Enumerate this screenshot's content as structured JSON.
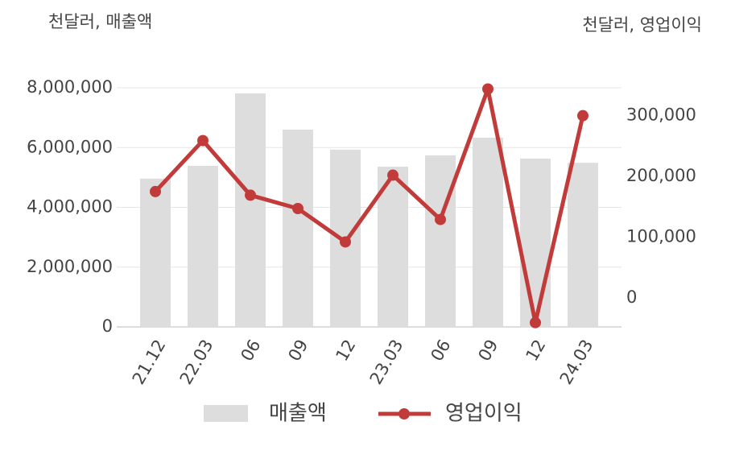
{
  "chart_data": {
    "type": "bar",
    "y_label": "천달러, 매출액",
    "y2_label": "천달러, 영업이익",
    "categories": [
      "21.12",
      "22.03",
      "06",
      "09",
      "12",
      "23.03",
      "06",
      "09",
      "12",
      "24.03"
    ],
    "series": [
      {
        "name": "매출액",
        "type": "bar",
        "color": "#dddddd",
        "values": [
          4960000,
          5390000,
          7810000,
          6600000,
          5930000,
          5360000,
          5740000,
          6330000,
          5630000,
          5490000
        ]
      },
      {
        "name": "영업이익",
        "type": "line",
        "color": "#c23b3b",
        "axis": "y2",
        "values": [
          175000,
          259000,
          169000,
          147000,
          92000,
          202000,
          129000,
          344000,
          -41000,
          300000
        ]
      }
    ],
    "ylim": [
      0,
      8000000
    ],
    "yticks": [
      0,
      {
        "value": 2000000,
        "label": "2,000,000"
      },
      {
        "value": 4000000,
        "label": "4,000,000"
      },
      {
        "value": 6000000,
        "label": "6,000,000"
      },
      {
        "value": 8000000,
        "label": "8,000,000"
      }
    ],
    "y2lim": [
      -48000,
      346000
    ],
    "y2ticks": [
      0,
      {
        "value": 100000,
        "label": "100,000"
      },
      {
        "value": 200000,
        "label": "200,000"
      },
      {
        "value": 300000,
        "label": "300,000"
      }
    ],
    "grid": true
  }
}
